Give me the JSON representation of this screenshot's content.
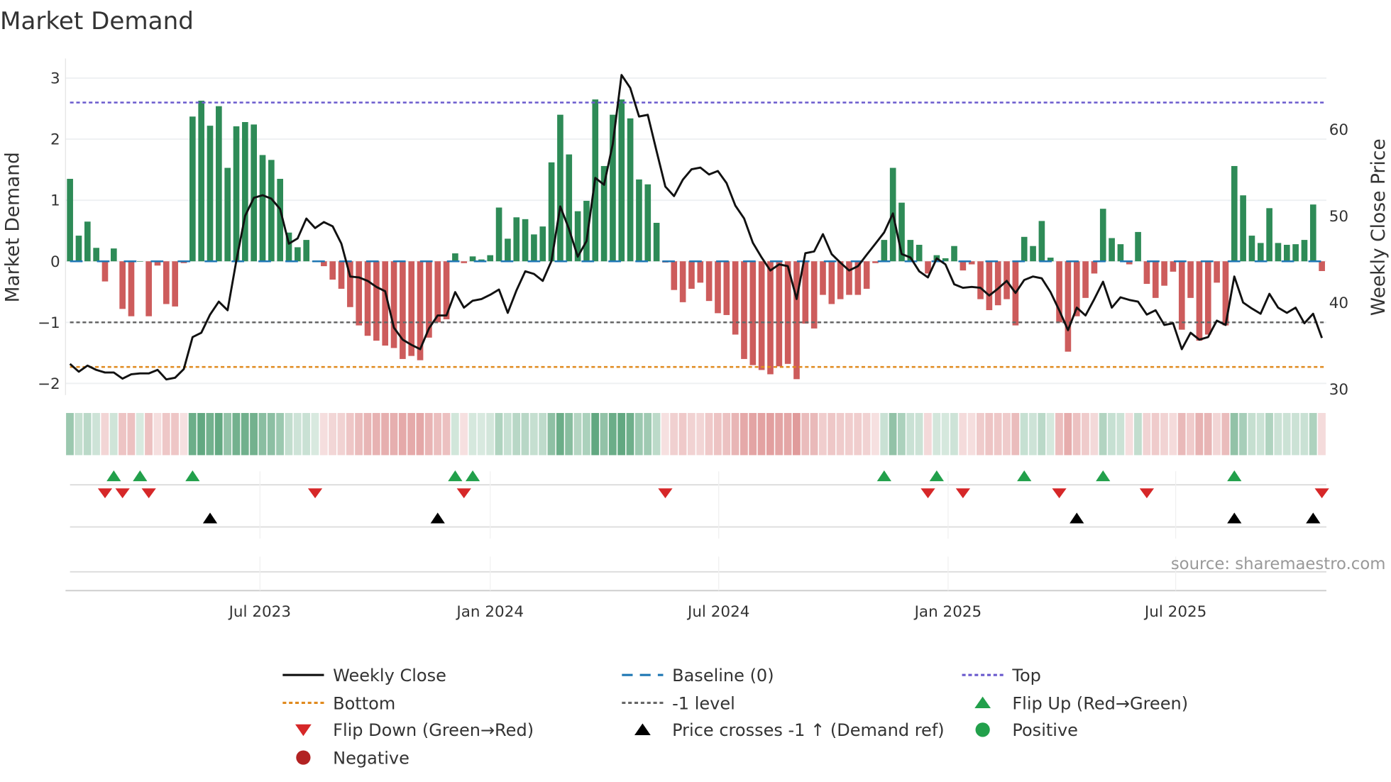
{
  "title": "Market Demand",
  "source": "source: sharemaestro.com",
  "colors": {
    "green": "#2e8b57",
    "red": "#cd5c5c",
    "price": "#111111",
    "baseline": "#1f77b4",
    "top": "#6a5acd",
    "bottom": "#e08a1e",
    "minus1": "#666666",
    "flip_up": "#22a04b",
    "flip_down": "#d62728",
    "cross": "#000000",
    "negative": "#b22222"
  },
  "chart_data": {
    "type": "bar",
    "title": "Market Demand",
    "ylabel": "Market Demand",
    "y2label": "Weekly Close Price",
    "ylim": [
      -2.19,
      3.32
    ],
    "y2lim": [
      29.2,
      68.1
    ],
    "yticks": [
      "-2",
      "-1",
      "0",
      "1",
      "2",
      "3"
    ],
    "y2ticks": [
      "30",
      "40",
      "50",
      "60"
    ],
    "x_ticks": [
      {
        "label": "Jul 2023",
        "week_index": 21.7
      },
      {
        "label": "Jan 2024",
        "week_index": 48.0
      },
      {
        "label": "Jul 2024",
        "week_index": 74.1
      },
      {
        "label": "Jan 2025",
        "week_index": 100.3
      },
      {
        "label": "Jul 2025",
        "week_index": 126.3
      }
    ],
    "levels": {
      "top": 2.6,
      "bottom": -1.73,
      "minus1": -1,
      "baseline": 0
    },
    "demand": [
      1.35,
      0.42,
      0.65,
      0.22,
      -0.33,
      0.21,
      -0.78,
      -0.9,
      0,
      -0.9,
      -0.07,
      -0.7,
      -0.74,
      -0.03,
      2.37,
      2.63,
      2.22,
      2.54,
      1.53,
      2.21,
      2.28,
      2.24,
      1.74,
      1.66,
      1.35,
      0.47,
      0.23,
      0.35,
      0,
      -0.08,
      -0.3,
      -0.45,
      -0.75,
      -1.05,
      -1.22,
      -1.3,
      -1.38,
      -1.42,
      -1.6,
      -1.55,
      -1.62,
      -1.25,
      -1.0,
      -0.95,
      0.13,
      -0.03,
      0.08,
      0.03,
      0.1,
      0.88,
      0.37,
      0.72,
      0.69,
      0.44,
      0.57,
      1.62,
      2.4,
      1.75,
      0.82,
      0.99,
      2.65,
      1.56,
      2.4,
      2.65,
      2.34,
      1.34,
      1.26,
      0.63,
      -0.02,
      -0.47,
      -0.67,
      -0.45,
      -0.35,
      -0.65,
      -0.85,
      -0.88,
      -1.2,
      -1.6,
      -1.7,
      -1.78,
      -1.85,
      -1.72,
      -1.68,
      -1.93,
      -1.02,
      -1.1,
      -0.55,
      -0.7,
      -0.62,
      -0.55,
      -0.55,
      -0.45,
      -0.03,
      0.35,
      1.53,
      0.96,
      0.35,
      0.27,
      -0.2,
      0.1,
      0.05,
      0.25,
      -0.15,
      -0.05,
      -0.62,
      -0.8,
      -0.72,
      -0.62,
      -1.05,
      0.4,
      0.25,
      0.66,
      0.06,
      -1.0,
      -1.48,
      -0.9,
      -0.6,
      -0.2,
      0.86,
      0.38,
      0.28,
      -0.05,
      0.48,
      -0.37,
      -0.6,
      -0.4,
      -0.17,
      -1.12,
      -0.6,
      -1.3,
      -1.2,
      -0.35,
      -1.05,
      1.56,
      1.08,
      0.42,
      0.3,
      0.87,
      0.3,
      0.27,
      0.28,
      0.35,
      0.93,
      -0.16
    ],
    "price": [
      32.8,
      31.9,
      32.6,
      32.1,
      31.8,
      31.8,
      31.1,
      31.6,
      31.7,
      31.7,
      32.1,
      31.0,
      31.2,
      32.2,
      35.9,
      36.4,
      38.5,
      40.0,
      39.0,
      44.7,
      49.9,
      52.0,
      52.3,
      51.9,
      50.7,
      46.7,
      47.3,
      49.6,
      48.5,
      49.2,
      48.7,
      46.7,
      42.9,
      42.8,
      42.4,
      41.7,
      41.2,
      37.0,
      35.6,
      35.0,
      34.5,
      36.9,
      38.4,
      38.4,
      41.1,
      39.3,
      40.1,
      40.3,
      40.8,
      41.4,
      38.7,
      41.3,
      43.5,
      43.2,
      42.4,
      44.7,
      51.0,
      48.4,
      45.2,
      47.0,
      54.3,
      53.5,
      58.2,
      66.2,
      64.7,
      61.4,
      61.6,
      57.4,
      53.3,
      52.2,
      54.1,
      55.3,
      55.5,
      54.7,
      55.1,
      53.7,
      51.1,
      49.6,
      46.8,
      45.1,
      43.6,
      44.3,
      44.1,
      40.3,
      45.6,
      45.8,
      47.8,
      45.5,
      44.5,
      43.6,
      44.1,
      45.4,
      46.7,
      48.0,
      50.2,
      45.5,
      45.1,
      43.5,
      42.8,
      45.0,
      44.3,
      42.0,
      41.6,
      41.7,
      41.6,
      40.7,
      41.5,
      42.4,
      41.0,
      42.5,
      42.9,
      42.7,
      41.1,
      39.0,
      36.7,
      39.3,
      38.4,
      40.3,
      42.3,
      39.3,
      40.5,
      40.2,
      40.0,
      38.5,
      39.0,
      37.3,
      37.5,
      34.5,
      36.4,
      35.6,
      35.9,
      37.8,
      37.3,
      42.9,
      39.9,
      39.2,
      38.6,
      40.9,
      39.3,
      38.7,
      39.3,
      37.5,
      38.6,
      35.8
    ],
    "flip_up_weeks": [
      5,
      8,
      14,
      44,
      46,
      93,
      99,
      109,
      118,
      133
    ],
    "flip_down_weeks": [
      4,
      6,
      9,
      28,
      45,
      68,
      98,
      102,
      113,
      123,
      143
    ],
    "price_cross_weeks": [
      16,
      42,
      115,
      133,
      142
    ]
  },
  "legend": [
    {
      "label": "Weekly Close",
      "kind": "line",
      "color": "#111111",
      "dash": ""
    },
    {
      "label": "Baseline (0)",
      "kind": "line",
      "color": "#1f77b4",
      "dash": "12 8"
    },
    {
      "label": "Top",
      "kind": "line",
      "color": "#6a5acd",
      "dash": "4 3"
    },
    {
      "label": "Bottom",
      "kind": "line",
      "color": "#e08a1e",
      "dash": "4 3"
    },
    {
      "label": "-1 level",
      "kind": "line",
      "color": "#666666",
      "dash": "4 3"
    },
    {
      "label": "Flip Up (Red→Green)",
      "kind": "tri-up",
      "color": "#22a04b"
    },
    {
      "label": "Flip Down (Green→Red)",
      "kind": "tri-down",
      "color": "#d62728"
    },
    {
      "label": "Price crosses -1 ↑ (Demand ref)",
      "kind": "tri-up",
      "color": "#000000"
    },
    {
      "label": "Positive",
      "kind": "dot",
      "color": "#22a04b"
    },
    {
      "label": "Negative",
      "kind": "dot",
      "color": "#b22222"
    }
  ]
}
